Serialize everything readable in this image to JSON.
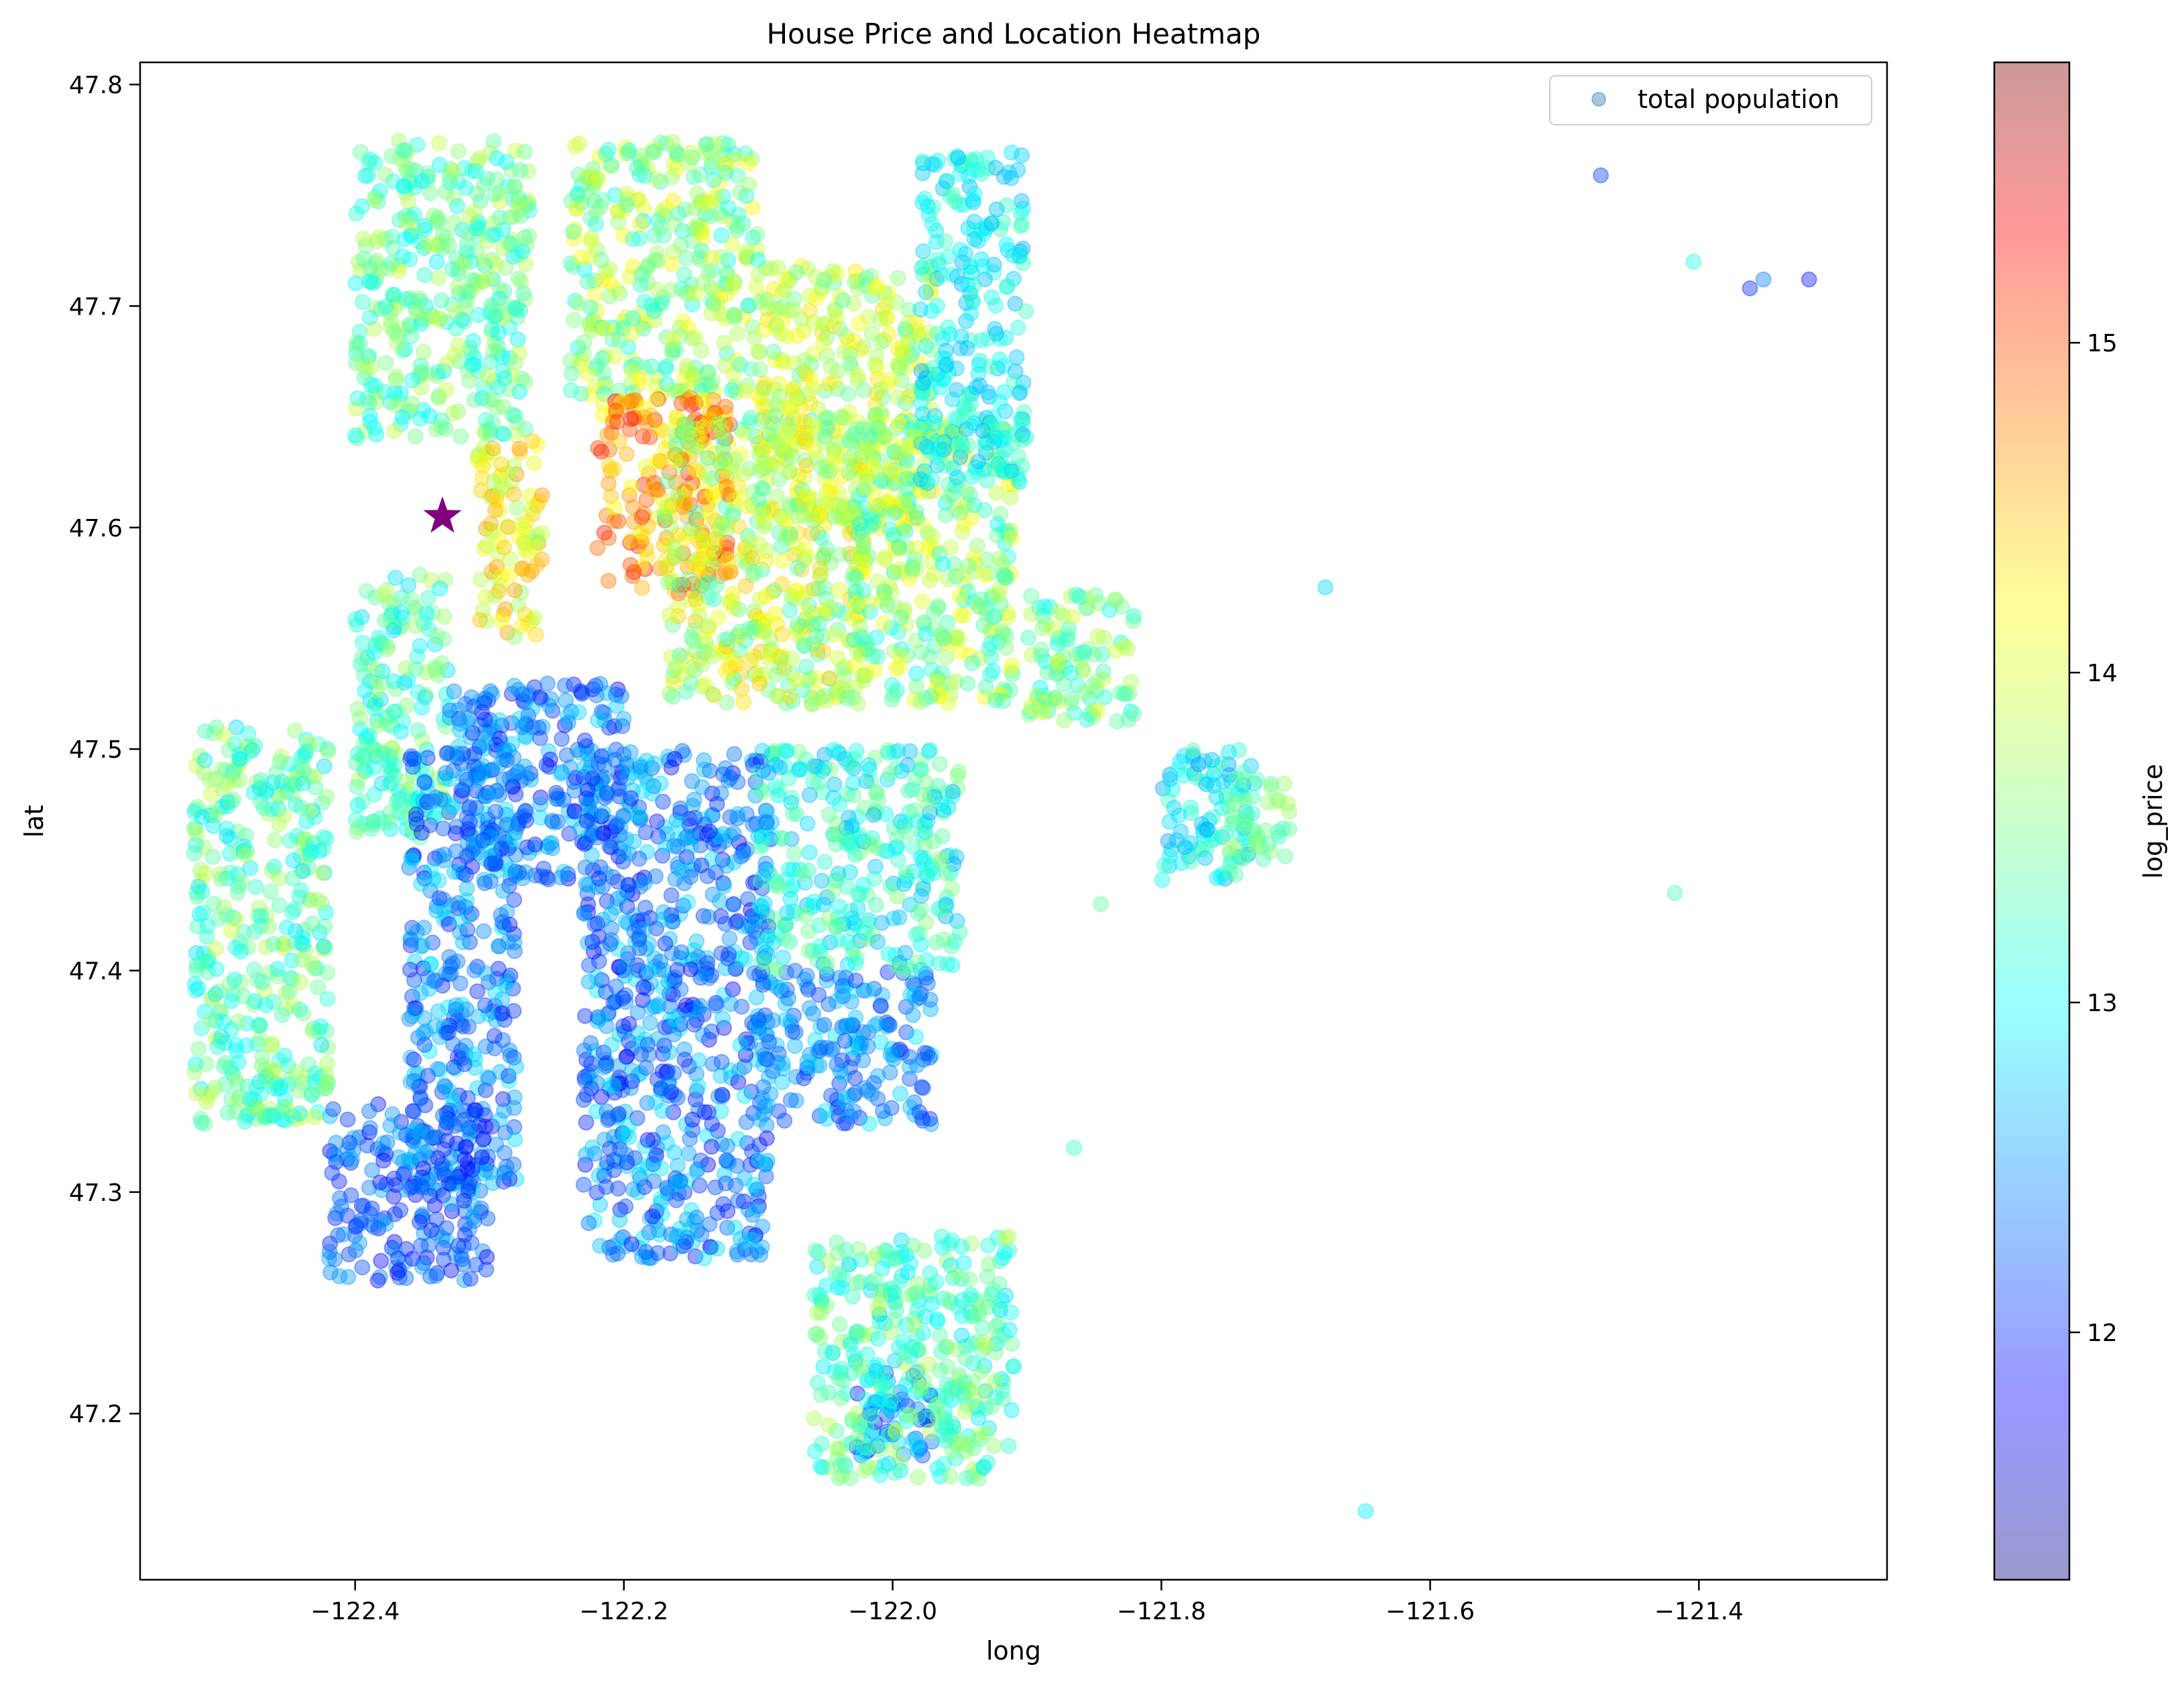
{
  "chart_data": {
    "type": "scatter",
    "title": "House Price and Location Heatmap",
    "xlabel": "long",
    "ylabel": "lat",
    "xlim": [
      -122.56,
      -121.26
    ],
    "ylim": [
      47.125,
      47.81
    ],
    "x_ticks": [
      {
        "value": -122.4,
        "label": "−122.4"
      },
      {
        "value": -122.2,
        "label": "−122.2"
      },
      {
        "value": -122.0,
        "label": "−122.0"
      },
      {
        "value": -121.8,
        "label": "−121.8"
      },
      {
        "value": -121.6,
        "label": "−121.6"
      },
      {
        "value": -121.4,
        "label": "−121.4"
      }
    ],
    "y_ticks": [
      {
        "value": 47.2,
        "label": "47.2"
      },
      {
        "value": 47.3,
        "label": "47.3"
      },
      {
        "value": 47.4,
        "label": "47.4"
      },
      {
        "value": 47.5,
        "label": "47.5"
      },
      {
        "value": 47.6,
        "label": "47.6"
      },
      {
        "value": 47.7,
        "label": "47.7"
      },
      {
        "value": 47.8,
        "label": "47.8"
      }
    ],
    "legend": {
      "position": "top-right",
      "entries": [
        {
          "label": "total population",
          "color": "#1f77b4"
        }
      ]
    },
    "grid": false,
    "colorbar": {
      "label": "log_price",
      "range": [
        11.25,
        15.85
      ],
      "ticks": [
        {
          "value": 12,
          "label": "12"
        },
        {
          "value": 13,
          "label": "13"
        },
        {
          "value": 14,
          "label": "14"
        },
        {
          "value": 15,
          "label": "15"
        }
      ],
      "colormap": "jet",
      "alpha": 0.4
    },
    "series": [
      {
        "name": "total population",
        "marker": "circle",
        "alpha": 0.4,
        "regions": [
          {
            "x": [
              -122.4,
              -122.27
            ],
            "y": [
              47.64,
              47.775
            ],
            "c": [
              12.9,
              13.9
            ]
          },
          {
            "x": [
              -122.24,
              -122.1
            ],
            "y": [
              47.66,
              47.775
            ],
            "c": [
              13.0,
              14.2
            ]
          },
          {
            "x": [
              -122.22,
              -122.12
            ],
            "y": [
              47.57,
              47.66
            ],
            "c": [
              14.0,
              15.2
            ]
          },
          {
            "x": [
              -122.17,
              -122.02
            ],
            "y": [
              47.52,
              47.65
            ],
            "c": [
              13.2,
              14.4
            ]
          },
          {
            "x": [
              -122.1,
              -121.97
            ],
            "y": [
              47.6,
              47.72
            ],
            "c": [
              13.3,
              14.3
            ]
          },
          {
            "x": [
              -122.03,
              -121.91
            ],
            "y": [
              47.52,
              47.65
            ],
            "c": [
              13.0,
              14.2
            ]
          },
          {
            "x": [
              -122.31,
              -122.26
            ],
            "y": [
              47.55,
              47.64
            ],
            "c": [
              13.6,
              14.6
            ]
          },
          {
            "x": [
              -122.4,
              -122.33
            ],
            "y": [
              47.46,
              47.58
            ],
            "c": [
              12.8,
              13.8
            ]
          },
          {
            "x": [
              -122.33,
              -122.2
            ],
            "y": [
              47.44,
              47.53
            ],
            "c": [
              11.8,
              12.8
            ]
          },
          {
            "x": [
              -122.36,
              -122.28
            ],
            "y": [
              47.3,
              47.5
            ],
            "c": [
              11.9,
              12.9
            ]
          },
          {
            "x": [
              -122.23,
              -122.09
            ],
            "y": [
              47.27,
              47.5
            ],
            "c": [
              11.8,
              12.9
            ]
          },
          {
            "x": [
              -122.42,
              -122.3
            ],
            "y": [
              47.26,
              47.34
            ],
            "c": [
              11.8,
              12.7
            ]
          },
          {
            "x": [
              -122.1,
              -121.97
            ],
            "y": [
              47.33,
              47.4
            ],
            "c": [
              12.0,
              12.9
            ]
          },
          {
            "x": [
              -122.1,
              -121.95
            ],
            "y": [
              47.4,
              47.5
            ],
            "c": [
              12.6,
              13.6
            ]
          },
          {
            "x": [
              -122.52,
              -122.42
            ],
            "y": [
              47.33,
              47.51
            ],
            "c": [
              12.8,
              13.9
            ]
          },
          {
            "x": [
              -122.03,
              -121.97
            ],
            "y": [
              47.18,
              47.22
            ],
            "c": [
              11.8,
              12.8
            ]
          },
          {
            "x": [
              -122.06,
              -121.91
            ],
            "y": [
              47.17,
              47.28
            ],
            "c": [
              12.8,
              13.8
            ]
          },
          {
            "x": [
              -121.9,
              -121.82
            ],
            "y": [
              47.51,
              47.57
            ],
            "c": [
              13.0,
              14.0
            ]
          },
          {
            "x": [
              -121.98,
              -121.9
            ],
            "y": [
              47.62,
              47.77
            ],
            "c": [
              12.6,
              13.3
            ]
          },
          {
            "x": [
              -121.8,
              -121.73
            ],
            "y": [
              47.44,
              47.5
            ],
            "c": [
              12.5,
              13.4
            ]
          },
          {
            "x": [
              -121.75,
              -121.7
            ],
            "y": [
              47.45,
              47.49
            ],
            "c": [
              13.2,
              13.8
            ]
          }
        ],
        "outliers": [
          {
            "x": -121.473,
            "y": 47.759,
            "c": 12.1
          },
          {
            "x": -121.404,
            "y": 47.72,
            "c": 13.1
          },
          {
            "x": -121.362,
            "y": 47.708,
            "c": 12.0
          },
          {
            "x": -121.352,
            "y": 47.712,
            "c": 12.4
          },
          {
            "x": -121.318,
            "y": 47.712,
            "c": 11.9
          },
          {
            "x": -121.678,
            "y": 47.573,
            "c": 12.8
          },
          {
            "x": -121.418,
            "y": 47.435,
            "c": 13.3
          },
          {
            "x": -121.648,
            "y": 47.156,
            "c": 12.9
          },
          {
            "x": -121.845,
            "y": 47.43,
            "c": 13.4
          },
          {
            "x": -121.865,
            "y": 47.32,
            "c": 13.2
          }
        ]
      }
    ],
    "annotations": [
      {
        "type": "star",
        "x": -122.335,
        "y": 47.605,
        "color": "#800080"
      }
    ]
  }
}
